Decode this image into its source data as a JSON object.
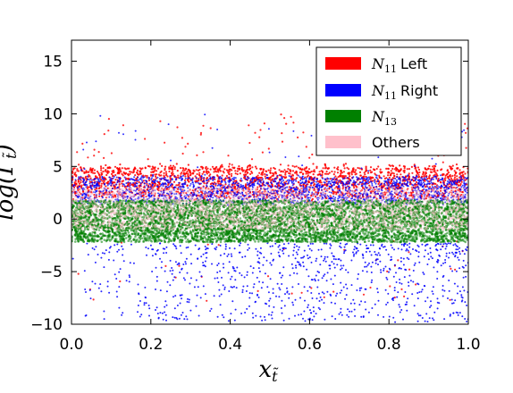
{
  "chart_data": {
    "type": "scatter",
    "xlabel": "x",
    "xlabel_sub": "t̃",
    "ylabel": "log(Γ",
    "ylabel_sub": "t̃",
    "ylabel_close": ")",
    "xlim": [
      0.0,
      1.0
    ],
    "ylim": [
      -10,
      17
    ],
    "x_ticks": [
      0.0,
      0.2,
      0.4,
      0.6,
      0.8,
      1.0
    ],
    "x_tick_labels": [
      "0.0",
      "0.2",
      "0.4",
      "0.6",
      "0.8",
      "1.0"
    ],
    "y_ticks": [
      -10,
      -5,
      0,
      5,
      10,
      15
    ],
    "y_tick_labels": [
      "−10",
      "−5",
      "0",
      "5",
      "10",
      "15"
    ],
    "grid": false,
    "legend_position": "top-right",
    "series": [
      {
        "name": "Left",
        "name_math": "N",
        "name_sub": "11",
        "color": "#ff0000",
        "y_band": [
          2.0,
          5.0
        ],
        "y_outliers_range": [
          -9,
          11
        ],
        "points": 2200
      },
      {
        "name": "Right",
        "name_math": "N",
        "name_sub": "11",
        "color": "#0000ff",
        "y_band": [
          1.5,
          4.0
        ],
        "y_outliers_range": [
          -10,
          10
        ],
        "points": 2000
      },
      {
        "name": "",
        "name_math": "N",
        "name_sub": "13",
        "color": "#008000",
        "y_band": [
          -2.2,
          1.8
        ],
        "points": 6000
      },
      {
        "name": "Others",
        "name_math": "",
        "name_sub": "",
        "color": "#ffc0cb",
        "y_band": [
          -1.0,
          3.0
        ],
        "points": 3000
      }
    ]
  }
}
